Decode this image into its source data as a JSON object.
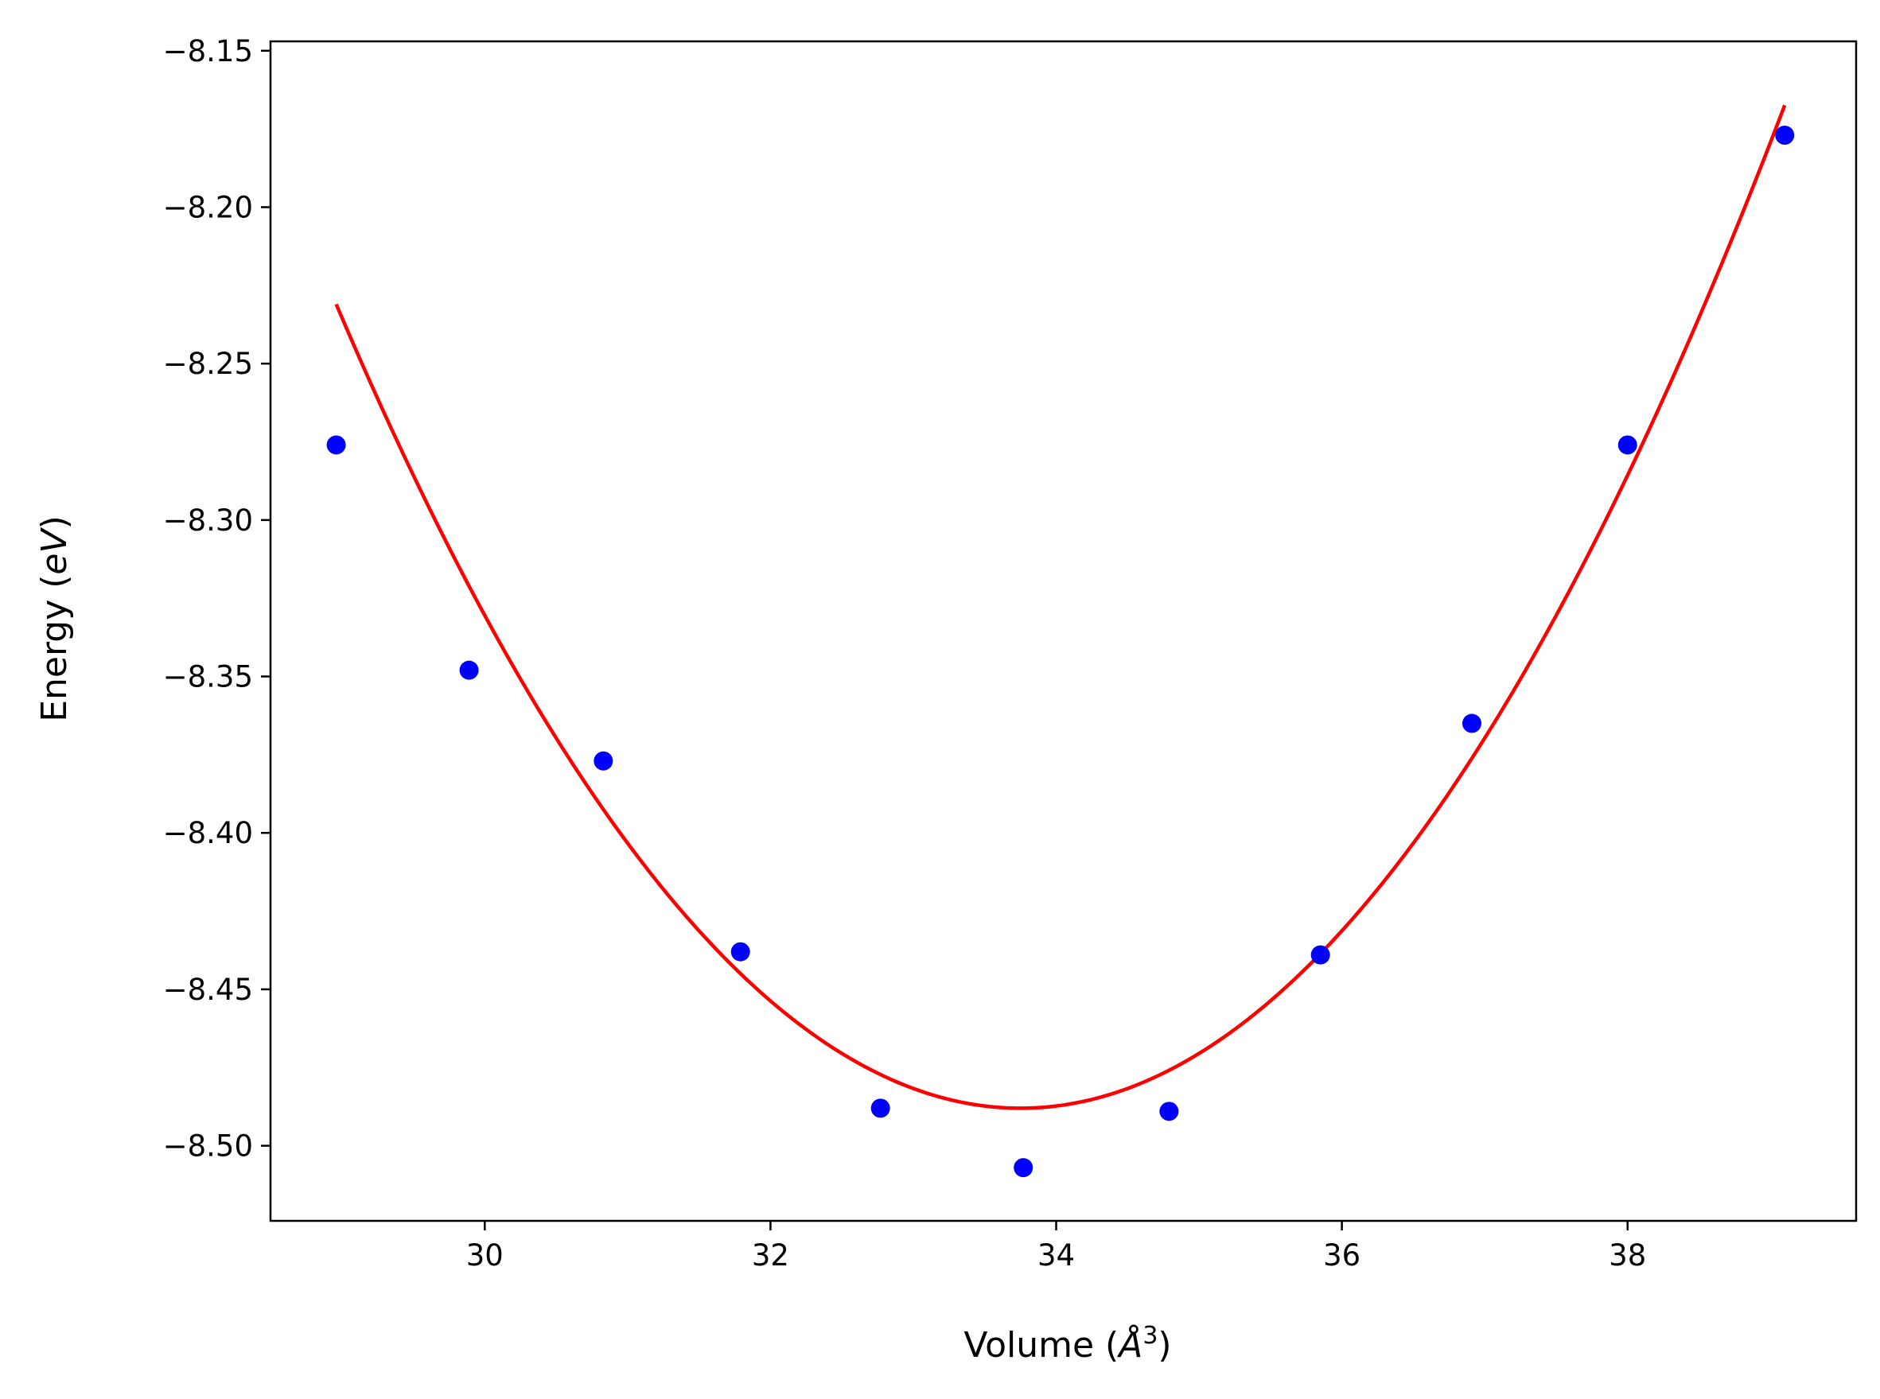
{
  "chart_data": {
    "type": "scatter",
    "title": "",
    "xlabel": {
      "prefix": "Volume (",
      "var": "Å",
      "sup": "3",
      "suffix": ")"
    },
    "ylabel": {
      "prefix": "Energy (",
      "var": "eV",
      "suffix": ")"
    },
    "xlim": [
      28.5,
      39.6
    ],
    "ylim": [
      -8.524,
      -8.147
    ],
    "xticks": [
      30,
      32,
      34,
      36,
      38
    ],
    "xtick_labels": [
      "30",
      "32",
      "34",
      "36",
      "38"
    ],
    "yticks": [
      -8.15,
      -8.2,
      -8.25,
      -8.3,
      -8.35,
      -8.4,
      -8.45,
      -8.5
    ],
    "ytick_labels": [
      "−8.15",
      "−8.20",
      "−8.25",
      "−8.30",
      "−8.35",
      "−8.40",
      "−8.45",
      "−8.50"
    ],
    "grid": false,
    "series": [
      {
        "kind": "points",
        "color": "#0000ff",
        "x": [
          28.96,
          29.89,
          30.83,
          31.79,
          32.77,
          33.77,
          34.79,
          35.85,
          36.91,
          38.0,
          39.1
        ],
        "y": [
          -8.276,
          -8.348,
          -8.377,
          -8.438,
          -8.488,
          -8.507,
          -8.489,
          -8.439,
          -8.365,
          -8.276,
          -8.177
        ]
      },
      {
        "kind": "fit-line",
        "color": "#ff0000",
        "curve": {
          "type": "quadratic",
          "x_min": 33.75,
          "y_min": -8.488,
          "curvature": 0.0112
        },
        "x_range": [
          28.96,
          39.1
        ]
      }
    ]
  }
}
